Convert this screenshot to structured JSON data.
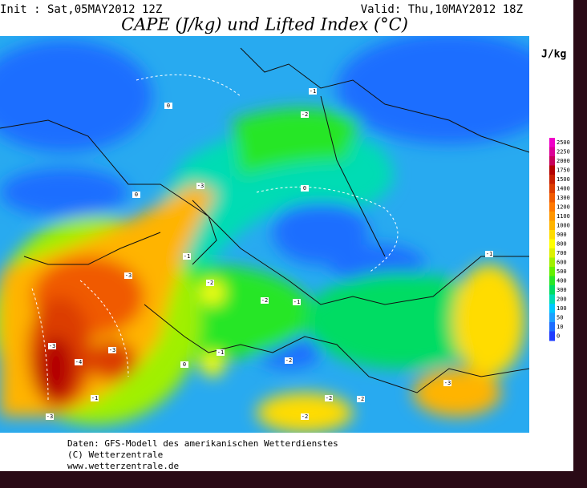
{
  "header": {
    "init": "Init : Sat,05MAY2012 12Z",
    "valid": "Valid: Thu,10MAY2012 18Z",
    "title": "CAPE (J/kg) und Lifted Index (°C)"
  },
  "colorbar": {
    "unit": "J/kg",
    "levels": [
      {
        "label": "2500",
        "color": "#f000c8"
      },
      {
        "label": "2250",
        "color": "#dc0096"
      },
      {
        "label": "2000",
        "color": "#c8005a"
      },
      {
        "label": "1750",
        "color": "#b40000"
      },
      {
        "label": "1500",
        "color": "#c81e00"
      },
      {
        "label": "1400",
        "color": "#dc3c00"
      },
      {
        "label": "1300",
        "color": "#f05a00"
      },
      {
        "label": "1200",
        "color": "#ff7800"
      },
      {
        "label": "1100",
        "color": "#ff9600"
      },
      {
        "label": "1000",
        "color": "#ffb400"
      },
      {
        "label": "900",
        "color": "#ffdc00"
      },
      {
        "label": "800",
        "color": "#ffff00"
      },
      {
        "label": "700",
        "color": "#dcf000"
      },
      {
        "label": "600",
        "color": "#a0f000"
      },
      {
        "label": "500",
        "color": "#64f000"
      },
      {
        "label": "400",
        "color": "#28e628"
      },
      {
        "label": "300",
        "color": "#00dc64"
      },
      {
        "label": "200",
        "color": "#00dcb4"
      },
      {
        "label": "100",
        "color": "#00c8ff"
      },
      {
        "label": "50",
        "color": "#1ea0ff"
      },
      {
        "label": "10",
        "color": "#1e6eff"
      },
      {
        "label": "0",
        "color": "#1e3cff"
      }
    ]
  },
  "contour_labels": [
    "0",
    "0",
    "-1",
    "-2",
    "-3",
    "-1",
    "-2",
    "-3",
    "-3",
    "-4",
    "-3",
    "-1",
    "-2",
    "-1",
    "-2",
    "0",
    "-1",
    "-3",
    "-2",
    "-2",
    "-3",
    "-1",
    "0",
    "-2"
  ],
  "footer": {
    "source": "Daten: GFS-Modell des amerikanischen Wetterdienstes",
    "copyright": "(C) Wetterzentrale",
    "url": "www.wetterzentrale.de"
  }
}
